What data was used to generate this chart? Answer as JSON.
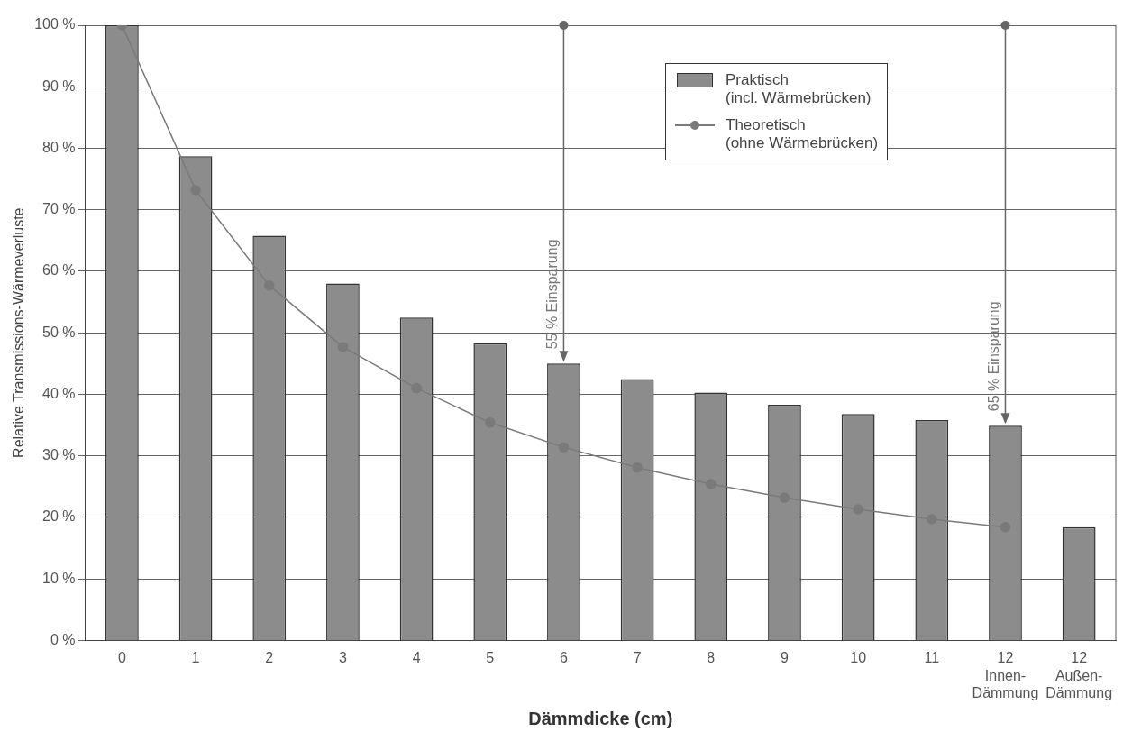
{
  "chart_data": {
    "type": "bar",
    "xlabel": "Dämmdicke (cm)",
    "ylabel": "Relative Transmissions-Wärmeverluste",
    "categories": [
      "0",
      "1",
      "2",
      "3",
      "4",
      "5",
      "6",
      "7",
      "8",
      "9",
      "10",
      "11",
      "12\nInnen-\nDämmung",
      "12\nAußen-\nDämmung"
    ],
    "series": [
      {
        "name": "Praktisch\n(incl. Wärmebrücken)",
        "color": "#8c8c8c",
        "values": [
          100,
          78.7,
          65.8,
          58,
          52.5,
          48.3,
          45,
          42.5,
          40.3,
          38.3,
          36.8,
          35.8,
          34.9,
          18.4
        ]
      },
      {
        "name": "Theoretisch\n(ohne Wärmebrücken)",
        "type": "line",
        "color": "#7a7a7a",
        "values": [
          100,
          73.2,
          57.7,
          47.7,
          41,
          35.4,
          31.4,
          28.1,
          25.4,
          23.2,
          21.3,
          19.7,
          18.4,
          null
        ]
      }
    ],
    "ylim": [
      0,
      100
    ],
    "yticks": [
      {
        "value": 0,
        "label": "0 %"
      },
      {
        "value": 10,
        "label": "10 %"
      },
      {
        "value": 20,
        "label": "20 %"
      },
      {
        "value": 30,
        "label": "30 %"
      },
      {
        "value": 40,
        "label": "40 %"
      },
      {
        "value": 50,
        "label": "50 %"
      },
      {
        "value": 60,
        "label": "60 %"
      },
      {
        "value": 70,
        "label": "70 %"
      },
      {
        "value": 80,
        "label": "80 %"
      },
      {
        "value": 90,
        "label": "90 %"
      },
      {
        "value": 100,
        "label": "100 %"
      }
    ],
    "annotations": [
      {
        "text": "55 % Einsparung",
        "x": "6",
        "y": 45
      },
      {
        "text": "65 % Einsparung",
        "x": "12\nInnen-\nDämmung",
        "y": 34.9
      }
    ],
    "grid": "y",
    "legend": "top right",
    "marker": "circle",
    "line_style": "solid"
  }
}
